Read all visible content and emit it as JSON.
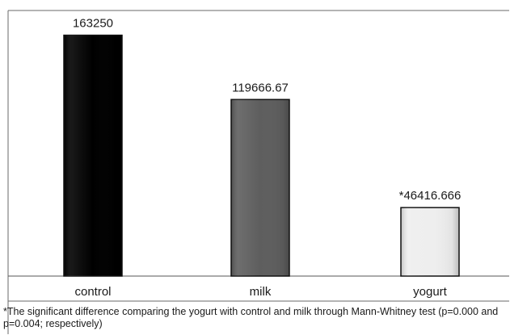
{
  "chart_data": {
    "type": "bar",
    "categories": [
      "control",
      "milk",
      "yogurt"
    ],
    "values": [
      163250,
      119666.67,
      46416.666
    ],
    "data_labels": [
      "163250",
      "119666.67",
      "*46416.666"
    ],
    "colors": [
      "#000000",
      "#5e5e5e",
      "#eeeeee"
    ],
    "ylim": [
      0,
      180000
    ],
    "grid": false,
    "legend": "none"
  },
  "footnote": "*The significant difference comparing the yogurt with control and milk through Mann-Whitney test (p=0.000 and p=0.004; respectively)"
}
